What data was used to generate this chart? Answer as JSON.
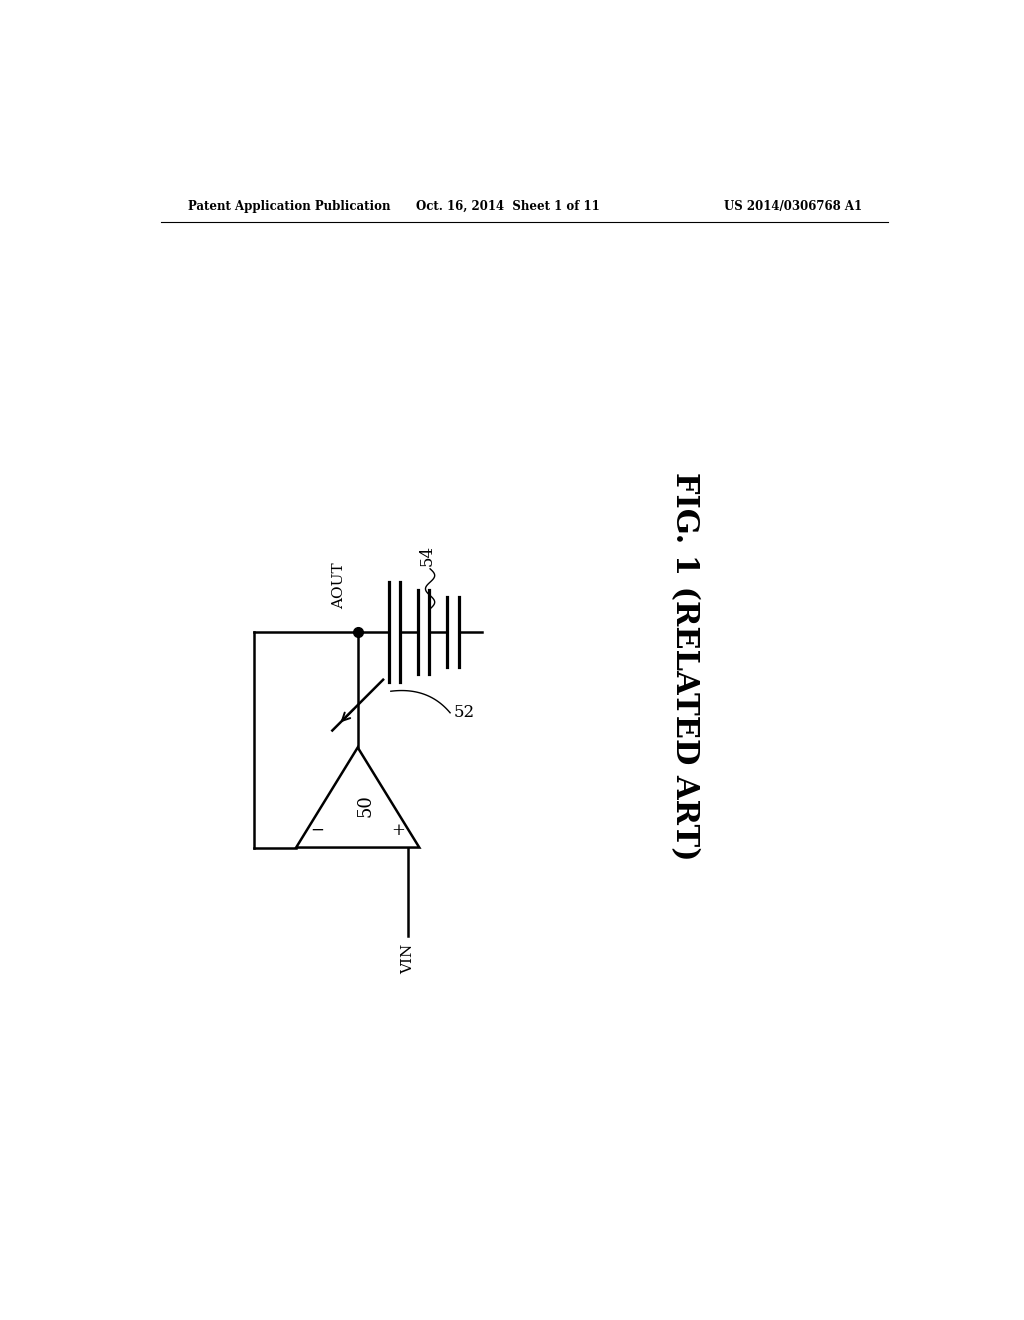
{
  "bg_color": "#ffffff",
  "lc": "#000000",
  "header_left": "Patent Application Publication",
  "header_mid": "Oct. 16, 2014  Sheet 1 of 11",
  "header_right": "US 2014/0306768 A1",
  "fig_label": "FIG. 1 (RELATED ART)",
  "lw": 1.8
}
